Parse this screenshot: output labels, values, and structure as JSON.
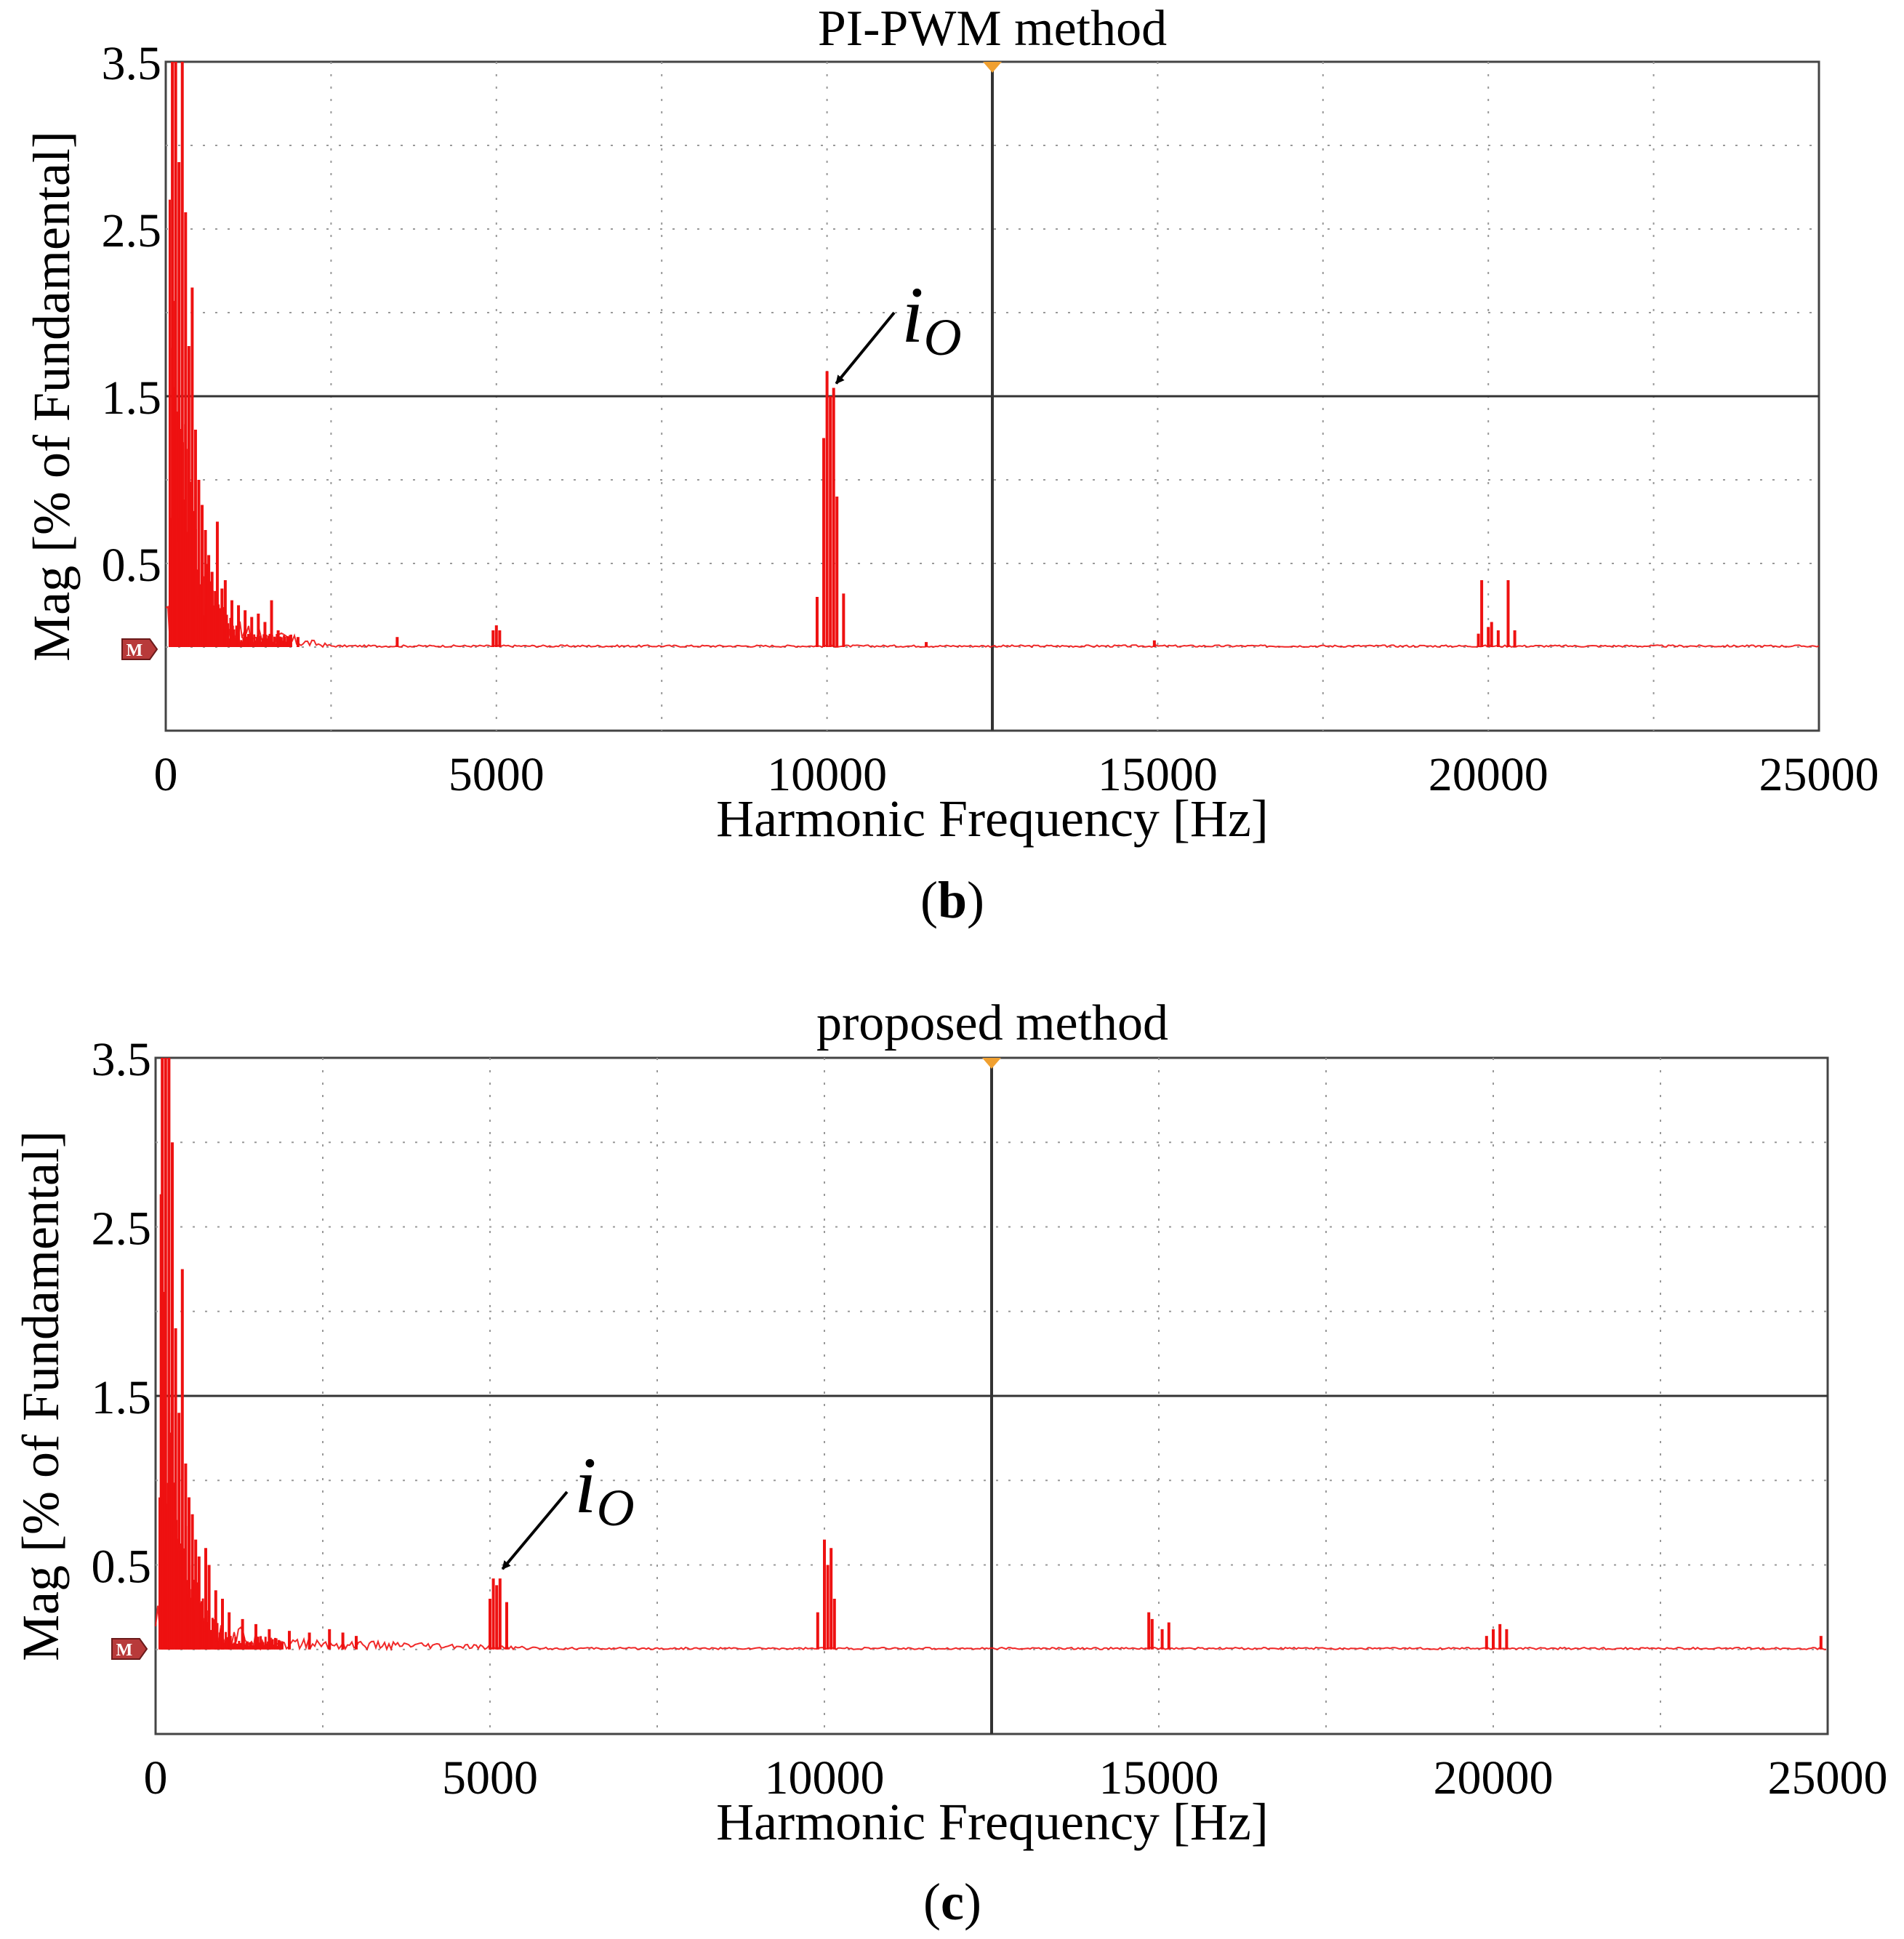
{
  "chart_data": [
    {
      "type": "line",
      "panel_label_open": "(",
      "panel_label_letter": "b",
      "panel_label_close": ")",
      "title": "PI-PWM method",
      "xlabel": "Harmonic Frequency [Hz]",
      "ylabel": "Mag [% of Fundamental]",
      "xlim": [
        0,
        25000
      ],
      "ylim": [
        -0.5,
        3.5
      ],
      "x_ticks": [
        0,
        5000,
        10000,
        15000,
        20000,
        25000
      ],
      "x_tick_labels": [
        "0",
        "5000",
        "10000",
        "15000",
        "20000",
        "25000"
      ],
      "y_tick_values": [
        0.5,
        1.5,
        2.5,
        3.5
      ],
      "y_tick_labels": [
        "0.5",
        "1.5",
        "2.5",
        "3.5"
      ],
      "grid": true,
      "reference_marker": "M",
      "series_color": "#ee1111",
      "annotation": {
        "symbol": "i",
        "subscript": "O",
        "target_x": 10050,
        "target_y": 1.55
      },
      "baseline": 0.0,
      "spikes": [
        [
          100,
          3.5
        ],
        [
          150,
          3.5
        ],
        [
          200,
          2.9
        ],
        [
          250,
          3.5
        ],
        [
          300,
          2.6
        ],
        [
          350,
          1.8
        ],
        [
          400,
          2.15
        ],
        [
          450,
          1.3
        ],
        [
          500,
          1.0
        ],
        [
          550,
          0.85
        ],
        [
          600,
          0.7
        ],
        [
          650,
          0.55
        ],
        [
          700,
          0.45
        ],
        [
          780,
          0.75
        ],
        [
          850,
          0.35
        ],
        [
          900,
          0.4
        ],
        [
          1000,
          0.28
        ],
        [
          1100,
          0.25
        ],
        [
          1200,
          0.22
        ],
        [
          1300,
          0.18
        ],
        [
          1400,
          0.2
        ],
        [
          1500,
          0.15
        ],
        [
          1600,
          0.28
        ],
        [
          1700,
          0.1
        ],
        [
          2000,
          0.06
        ],
        [
          3500,
          0.06
        ],
        [
          4950,
          0.1
        ],
        [
          5000,
          0.13
        ],
        [
          5050,
          0.1
        ],
        [
          9850,
          0.3
        ],
        [
          9950,
          1.25
        ],
        [
          10000,
          1.65
        ],
        [
          10050,
          1.5
        ],
        [
          10100,
          1.55
        ],
        [
          10150,
          0.9
        ],
        [
          10250,
          0.32
        ],
        [
          11500,
          0.03
        ],
        [
          14950,
          0.04
        ],
        [
          19850,
          0.08
        ],
        [
          19900,
          0.4
        ],
        [
          20000,
          0.12
        ],
        [
          20050,
          0.15
        ],
        [
          20150,
          0.1
        ],
        [
          20300,
          0.4
        ],
        [
          20400,
          0.1
        ]
      ]
    },
    {
      "type": "line",
      "panel_label_open": "(",
      "panel_label_letter": "c",
      "panel_label_close": ")",
      "title": "proposed method",
      "xlabel": "Harmonic Frequency [Hz]",
      "ylabel": "Mag [% of Fundamental]",
      "xlim": [
        0,
        25000
      ],
      "ylim": [
        -0.5,
        3.5
      ],
      "x_ticks": [
        0,
        5000,
        10000,
        15000,
        20000,
        25000
      ],
      "x_tick_labels": [
        "0",
        "5000",
        "10000",
        "15000",
        "20000",
        "25000"
      ],
      "y_tick_values": [
        0.5,
        1.5,
        2.5,
        3.5
      ],
      "y_tick_labels": [
        "0.5",
        "1.5",
        "2.5",
        "3.5"
      ],
      "grid": true,
      "reference_marker": "M",
      "series_color": "#ee1111",
      "annotation": {
        "symbol": "i",
        "subscript": "O",
        "target_x": 5100,
        "target_y": 0.45
      },
      "baseline": 0.0,
      "spikes": [
        [
          100,
          3.5
        ],
        [
          150,
          3.5
        ],
        [
          200,
          3.5
        ],
        [
          250,
          3.0
        ],
        [
          300,
          1.9
        ],
        [
          350,
          1.4
        ],
        [
          400,
          2.25
        ],
        [
          450,
          1.1
        ],
        [
          500,
          0.9
        ],
        [
          550,
          0.8
        ],
        [
          600,
          0.65
        ],
        [
          650,
          0.55
        ],
        [
          750,
          0.6
        ],
        [
          800,
          0.5
        ],
        [
          900,
          0.35
        ],
        [
          1000,
          0.3
        ],
        [
          1100,
          0.22
        ],
        [
          1300,
          0.18
        ],
        [
          1500,
          0.15
        ],
        [
          1700,
          0.12
        ],
        [
          2000,
          0.11
        ],
        [
          2300,
          0.1
        ],
        [
          2600,
          0.12
        ],
        [
          2800,
          0.1
        ],
        [
          3000,
          0.08
        ],
        [
          5000,
          0.3
        ],
        [
          5050,
          0.42
        ],
        [
          5100,
          0.38
        ],
        [
          5150,
          0.42
        ],
        [
          5250,
          0.28
        ],
        [
          9900,
          0.22
        ],
        [
          10000,
          0.65
        ],
        [
          10050,
          0.5
        ],
        [
          10100,
          0.6
        ],
        [
          10150,
          0.3
        ],
        [
          14850,
          0.22
        ],
        [
          14900,
          0.18
        ],
        [
          15050,
          0.12
        ],
        [
          15150,
          0.16
        ],
        [
          19900,
          0.08
        ],
        [
          20000,
          0.12
        ],
        [
          20100,
          0.15
        ],
        [
          20200,
          0.12
        ],
        [
          24900,
          0.08
        ]
      ]
    }
  ]
}
